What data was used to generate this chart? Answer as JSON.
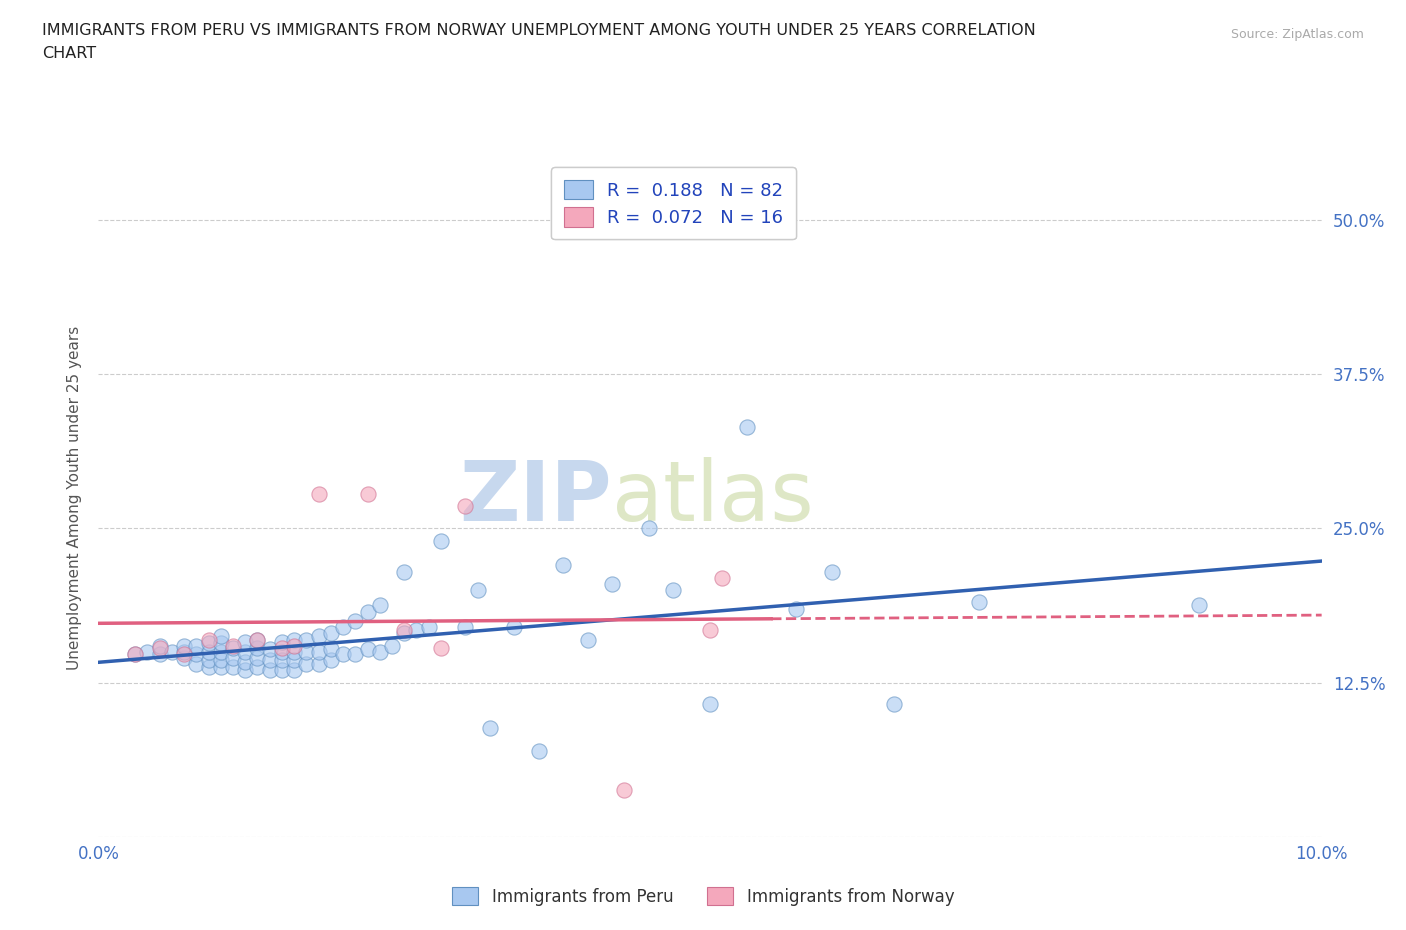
{
  "title_line1": "IMMIGRANTS FROM PERU VS IMMIGRANTS FROM NORWAY UNEMPLOYMENT AMONG YOUTH UNDER 25 YEARS CORRELATION",
  "title_line2": "CHART",
  "source_text": "Source: ZipAtlas.com",
  "ylabel": "Unemployment Among Youth under 25 years",
  "xlim": [
    0.0,
    0.1
  ],
  "ylim": [
    0.0,
    0.55
  ],
  "yticks": [
    0.0,
    0.125,
    0.25,
    0.375,
    0.5
  ],
  "ytick_labels_right": [
    "",
    "12.5%",
    "25.0%",
    "37.5%",
    "50.0%"
  ],
  "xticks": [
    0.0,
    0.025,
    0.05,
    0.075,
    0.1
  ],
  "xtick_labels": [
    "0.0%",
    "",
    "",
    "",
    "10.0%"
  ],
  "peru_color": "#A8C8F0",
  "norway_color": "#F4A8BC",
  "peru_line_color": "#3060B0",
  "norway_line_color": "#E06080",
  "R_peru": 0.188,
  "N_peru": 82,
  "R_norway": 0.072,
  "N_norway": 16,
  "watermark_zip": "ZIP",
  "watermark_atlas": "atlas",
  "peru_scatter_x": [
    0.003,
    0.004,
    0.005,
    0.005,
    0.006,
    0.007,
    0.007,
    0.007,
    0.008,
    0.008,
    0.008,
    0.009,
    0.009,
    0.009,
    0.009,
    0.01,
    0.01,
    0.01,
    0.01,
    0.01,
    0.011,
    0.011,
    0.011,
    0.012,
    0.012,
    0.012,
    0.012,
    0.013,
    0.013,
    0.013,
    0.013,
    0.014,
    0.014,
    0.014,
    0.015,
    0.015,
    0.015,
    0.015,
    0.016,
    0.016,
    0.016,
    0.016,
    0.017,
    0.017,
    0.017,
    0.018,
    0.018,
    0.018,
    0.019,
    0.019,
    0.019,
    0.02,
    0.02,
    0.021,
    0.021,
    0.022,
    0.022,
    0.023,
    0.023,
    0.024,
    0.025,
    0.025,
    0.026,
    0.027,
    0.028,
    0.03,
    0.031,
    0.032,
    0.034,
    0.036,
    0.038,
    0.04,
    0.042,
    0.045,
    0.047,
    0.05,
    0.053,
    0.057,
    0.06,
    0.065,
    0.072,
    0.09
  ],
  "peru_scatter_y": [
    0.148,
    0.15,
    0.148,
    0.155,
    0.15,
    0.145,
    0.15,
    0.155,
    0.14,
    0.148,
    0.155,
    0.138,
    0.143,
    0.15,
    0.157,
    0.138,
    0.143,
    0.15,
    0.157,
    0.163,
    0.138,
    0.145,
    0.153,
    0.135,
    0.142,
    0.15,
    0.158,
    0.138,
    0.145,
    0.153,
    0.16,
    0.135,
    0.143,
    0.152,
    0.135,
    0.143,
    0.15,
    0.158,
    0.135,
    0.143,
    0.15,
    0.16,
    0.14,
    0.15,
    0.16,
    0.14,
    0.15,
    0.163,
    0.143,
    0.152,
    0.165,
    0.148,
    0.17,
    0.148,
    0.175,
    0.152,
    0.182,
    0.15,
    0.188,
    0.155,
    0.165,
    0.215,
    0.168,
    0.17,
    0.24,
    0.17,
    0.2,
    0.088,
    0.17,
    0.07,
    0.22,
    0.16,
    0.205,
    0.25,
    0.2,
    0.108,
    0.332,
    0.185,
    0.215,
    0.108,
    0.19,
    0.188
  ],
  "norway_scatter_x": [
    0.003,
    0.005,
    0.007,
    0.009,
    0.011,
    0.013,
    0.015,
    0.016,
    0.018,
    0.022,
    0.025,
    0.028,
    0.03,
    0.043,
    0.05,
    0.051
  ],
  "norway_scatter_y": [
    0.148,
    0.153,
    0.148,
    0.16,
    0.155,
    0.16,
    0.153,
    0.155,
    0.278,
    0.278,
    0.168,
    0.153,
    0.268,
    0.038,
    0.168,
    0.21
  ]
}
